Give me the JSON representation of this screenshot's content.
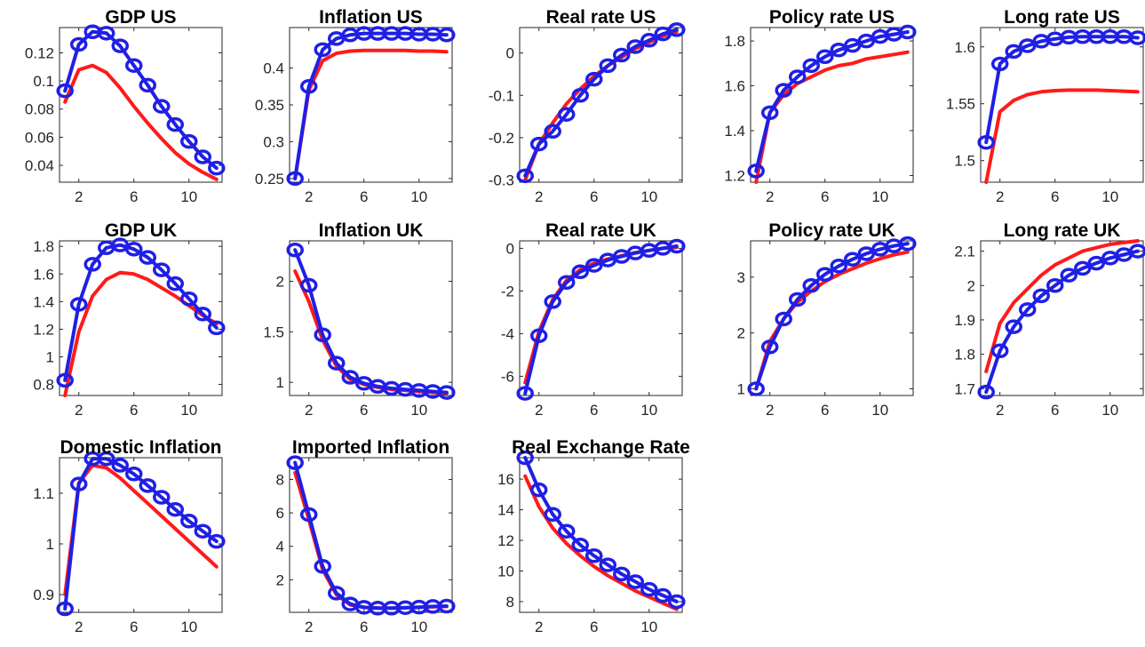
{
  "figure": {
    "colors": {
      "model_line": "#ff1a1a",
      "data_line": "#1f1fe6",
      "axis": "#262626"
    }
  },
  "chart_data": [
    {
      "type": "line",
      "title": "GDP US",
      "xlabel": "",
      "ylabel": "",
      "xlim": [
        0.6,
        12.4
      ],
      "ylim": [
        0.028,
        0.138
      ],
      "xticks": [
        2,
        6,
        10
      ],
      "yticks": [
        0.04,
        0.06,
        0.08,
        0.1,
        0.12
      ],
      "ytick_labels": [
        "0.04",
        "0.06",
        "0.08",
        "0.1",
        "0.12"
      ],
      "x": [
        1,
        2,
        3,
        4,
        5,
        6,
        7,
        8,
        9,
        10,
        11,
        12
      ],
      "series": [
        {
          "values": [
            0.085,
            0.108,
            0.111,
            0.106,
            0.095,
            0.082,
            0.07,
            0.059,
            0.049,
            0.041,
            0.035,
            0.03
          ]
        },
        {
          "marker": "o",
          "values": [
            0.093,
            0.126,
            0.135,
            0.134,
            0.125,
            0.111,
            0.097,
            0.082,
            0.069,
            0.057,
            0.046,
            0.038
          ]
        }
      ]
    },
    {
      "type": "line",
      "title": "Inflation US",
      "xlabel": "",
      "ylabel": "",
      "xlim": [
        0.6,
        12.4
      ],
      "ylim": [
        0.245,
        0.455
      ],
      "xticks": [
        2,
        6,
        10
      ],
      "yticks": [
        0.25,
        0.3,
        0.35,
        0.4
      ],
      "ytick_labels": [
        "0.25",
        "0.3",
        "0.35",
        "0.4"
      ],
      "x": [
        1,
        2,
        3,
        4,
        5,
        6,
        7,
        8,
        9,
        10,
        11,
        12
      ],
      "series": [
        {
          "values": [
            0.25,
            0.37,
            0.41,
            0.42,
            0.423,
            0.424,
            0.424,
            0.424,
            0.424,
            0.423,
            0.423,
            0.422
          ]
        },
        {
          "marker": "o",
          "values": [
            0.25,
            0.375,
            0.425,
            0.44,
            0.445,
            0.447,
            0.447,
            0.447,
            0.447,
            0.446,
            0.446,
            0.445
          ]
        }
      ]
    },
    {
      "type": "line",
      "title": "Real rate US",
      "xlabel": "",
      "ylabel": "",
      "xlim": [
        0.6,
        12.4
      ],
      "ylim": [
        -0.305,
        0.06
      ],
      "xticks": [
        2,
        6,
        10
      ],
      "yticks": [
        -0.3,
        -0.2,
        -0.1,
        0
      ],
      "ytick_labels": [
        "-0.3",
        "-0.2",
        "-0.1",
        "0"
      ],
      "x": [
        1,
        2,
        3,
        4,
        5,
        6,
        7,
        8,
        9,
        10,
        11,
        12
      ],
      "series": [
        {
          "values": [
            -0.3,
            -0.215,
            -0.165,
            -0.12,
            -0.085,
            -0.055,
            -0.03,
            -0.01,
            0.01,
            0.025,
            0.04,
            0.05
          ]
        },
        {
          "marker": "o",
          "values": [
            -0.29,
            -0.215,
            -0.185,
            -0.145,
            -0.1,
            -0.062,
            -0.03,
            -0.005,
            0.015,
            0.03,
            0.045,
            0.055
          ]
        }
      ]
    },
    {
      "type": "line",
      "title": "Policy rate US",
      "xlabel": "",
      "ylabel": "",
      "xlim": [
        0.6,
        12.4
      ],
      "ylim": [
        1.17,
        1.86
      ],
      "xticks": [
        2,
        6,
        10
      ],
      "yticks": [
        1.2,
        1.4,
        1.6,
        1.8
      ],
      "ytick_labels": [
        "1.2",
        "1.4",
        "1.6",
        "1.8"
      ],
      "x": [
        1,
        2,
        3,
        4,
        5,
        6,
        7,
        8,
        9,
        10,
        11,
        12
      ],
      "series": [
        {
          "values": [
            1.17,
            1.48,
            1.56,
            1.61,
            1.64,
            1.67,
            1.69,
            1.7,
            1.72,
            1.73,
            1.74,
            1.75
          ]
        },
        {
          "marker": "o",
          "values": [
            1.22,
            1.48,
            1.58,
            1.64,
            1.69,
            1.73,
            1.76,
            1.78,
            1.8,
            1.82,
            1.83,
            1.84
          ]
        }
      ]
    },
    {
      "type": "line",
      "title": "Long rate US",
      "xlabel": "",
      "ylabel": "",
      "xlim": [
        0.6,
        12.4
      ],
      "ylim": [
        1.481,
        1.617
      ],
      "xticks": [
        2,
        6,
        10
      ],
      "yticks": [
        1.5,
        1.55,
        1.6
      ],
      "ytick_labels": [
        "1.5",
        "1.55",
        "1.6"
      ],
      "x": [
        1,
        2,
        3,
        4,
        5,
        6,
        7,
        8,
        9,
        10,
        11,
        12
      ],
      "series": [
        {
          "values": [
            1.481,
            1.543,
            1.553,
            1.558,
            1.5605,
            1.5615,
            1.562,
            1.562,
            1.562,
            1.5615,
            1.561,
            1.5605
          ]
        },
        {
          "marker": "o",
          "values": [
            1.516,
            1.585,
            1.596,
            1.601,
            1.605,
            1.607,
            1.6085,
            1.609,
            1.609,
            1.609,
            1.609,
            1.608
          ]
        }
      ]
    },
    {
      "type": "line",
      "title": "GDP UK",
      "xlabel": "",
      "ylabel": "",
      "xlim": [
        0.6,
        12.4
      ],
      "ylim": [
        0.72,
        1.84
      ],
      "xticks": [
        2,
        6,
        10
      ],
      "yticks": [
        0.8,
        1,
        1.2,
        1.4,
        1.6,
        1.8
      ],
      "ytick_labels": [
        "0.8",
        "1",
        "1.2",
        "1.4",
        "1.6",
        "1.8"
      ],
      "x": [
        1,
        2,
        3,
        4,
        5,
        6,
        7,
        8,
        9,
        10,
        11,
        12
      ],
      "series": [
        {
          "values": [
            0.72,
            1.18,
            1.44,
            1.56,
            1.61,
            1.6,
            1.56,
            1.5,
            1.44,
            1.37,
            1.3,
            1.24
          ]
        },
        {
          "marker": "o",
          "values": [
            0.83,
            1.38,
            1.67,
            1.79,
            1.81,
            1.78,
            1.72,
            1.63,
            1.53,
            1.42,
            1.31,
            1.21
          ]
        }
      ]
    },
    {
      "type": "line",
      "title": "Inflation UK",
      "xlabel": "",
      "ylabel": "",
      "xlim": [
        0.6,
        12.4
      ],
      "ylim": [
        0.87,
        2.4
      ],
      "xticks": [
        2,
        6,
        10
      ],
      "yticks": [
        1,
        1.5,
        2
      ],
      "ytick_labels": [
        "1",
        "1.5",
        "2"
      ],
      "x": [
        1,
        2,
        3,
        4,
        5,
        6,
        7,
        8,
        9,
        10,
        11,
        12
      ],
      "series": [
        {
          "values": [
            2.1,
            1.8,
            1.42,
            1.16,
            1.03,
            0.98,
            0.95,
            0.93,
            0.92,
            0.91,
            0.9,
            0.89
          ]
        },
        {
          "marker": "o",
          "values": [
            2.31,
            1.96,
            1.47,
            1.19,
            1.05,
            0.99,
            0.96,
            0.94,
            0.93,
            0.92,
            0.91,
            0.9
          ]
        }
      ]
    },
    {
      "type": "line",
      "title": "Real rate UK",
      "xlabel": "",
      "ylabel": "",
      "xlim": [
        0.6,
        12.4
      ],
      "ylim": [
        -6.9,
        0.35
      ],
      "xticks": [
        2,
        6,
        10
      ],
      "yticks": [
        -6,
        -4,
        -2,
        0
      ],
      "ytick_labels": [
        "-6",
        "-4",
        "-2",
        "0"
      ],
      "x": [
        1,
        2,
        3,
        4,
        5,
        6,
        7,
        8,
        9,
        10,
        11,
        12
      ],
      "series": [
        {
          "values": [
            -6.3,
            -3.9,
            -2.4,
            -1.5,
            -1.0,
            -0.7,
            -0.5,
            -0.35,
            -0.2,
            -0.1,
            0.0,
            0.05
          ]
        },
        {
          "marker": "o",
          "values": [
            -6.8,
            -4.1,
            -2.5,
            -1.6,
            -1.1,
            -0.8,
            -0.55,
            -0.38,
            -0.22,
            -0.1,
            0.0,
            0.1
          ]
        }
      ]
    },
    {
      "type": "line",
      "title": "Policy rate UK",
      "xlabel": "",
      "ylabel": "",
      "xlim": [
        0.6,
        12.4
      ],
      "ylim": [
        0.88,
        3.65
      ],
      "xticks": [
        2,
        6,
        10
      ],
      "yticks": [
        1,
        2,
        3
      ],
      "ytick_labels": [
        "1",
        "2",
        "3"
      ],
      "x": [
        1,
        2,
        3,
        4,
        5,
        6,
        7,
        8,
        9,
        10,
        11,
        12
      ],
      "series": [
        {
          "values": [
            1.0,
            1.85,
            2.25,
            2.55,
            2.75,
            2.92,
            3.05,
            3.15,
            3.25,
            3.33,
            3.4,
            3.45
          ]
        },
        {
          "marker": "o",
          "values": [
            1.0,
            1.75,
            2.25,
            2.6,
            2.85,
            3.05,
            3.2,
            3.32,
            3.42,
            3.5,
            3.56,
            3.6
          ]
        }
      ]
    },
    {
      "type": "line",
      "title": "Long rate UK",
      "xlabel": "",
      "ylabel": "",
      "xlim": [
        0.6,
        12.4
      ],
      "ylim": [
        1.68,
        2.13
      ],
      "xticks": [
        2,
        6,
        10
      ],
      "yticks": [
        1.7,
        1.8,
        1.9,
        2,
        2.1
      ],
      "ytick_labels": [
        "1.7",
        "1.8",
        "1.9",
        "2",
        "2.1"
      ],
      "x": [
        1,
        2,
        3,
        4,
        5,
        6,
        7,
        8,
        9,
        10,
        11,
        12
      ],
      "series": [
        {
          "values": [
            1.75,
            1.89,
            1.95,
            1.99,
            2.03,
            2.06,
            2.08,
            2.1,
            2.11,
            2.12,
            2.125,
            2.13
          ]
        },
        {
          "marker": "o",
          "values": [
            1.69,
            1.81,
            1.88,
            1.93,
            1.97,
            2.0,
            2.03,
            2.05,
            2.065,
            2.08,
            2.09,
            2.1
          ]
        }
      ]
    },
    {
      "type": "line",
      "title": "Domestic Inflation",
      "xlabel": "",
      "ylabel": "",
      "xlim": [
        0.6,
        12.4
      ],
      "ylim": [
        0.865,
        1.17
      ],
      "xticks": [
        2,
        6,
        10
      ],
      "yticks": [
        0.9,
        1,
        1.1
      ],
      "ytick_labels": [
        "0.9",
        "1",
        "1.1"
      ],
      "x": [
        1,
        2,
        3,
        4,
        5,
        6,
        7,
        8,
        9,
        10,
        11,
        12
      ],
      "series": [
        {
          "values": [
            0.9,
            1.12,
            1.155,
            1.15,
            1.13,
            1.105,
            1.08,
            1.055,
            1.03,
            1.005,
            0.98,
            0.955
          ]
        },
        {
          "marker": "o",
          "values": [
            0.872,
            1.118,
            1.168,
            1.168,
            1.155,
            1.138,
            1.115,
            1.092,
            1.068,
            1.045,
            1.025,
            1.005
          ]
        }
      ]
    },
    {
      "type": "line",
      "title": "Imported Inflation",
      "xlabel": "",
      "ylabel": "",
      "xlim": [
        0.6,
        12.4
      ],
      "ylim": [
        0.05,
        9.3
      ],
      "xticks": [
        2,
        6,
        10
      ],
      "yticks": [
        2,
        4,
        6,
        8
      ],
      "ytick_labels": [
        "2",
        "4",
        "6",
        "8"
      ],
      "x": [
        1,
        2,
        3,
        4,
        5,
        6,
        7,
        8,
        9,
        10,
        11,
        12
      ],
      "series": [
        {
          "values": [
            8.4,
            5.6,
            2.6,
            1.1,
            0.5,
            0.35,
            0.3,
            0.3,
            0.32,
            0.35,
            0.38,
            0.4
          ]
        },
        {
          "marker": "o",
          "values": [
            9.0,
            5.9,
            2.8,
            1.2,
            0.55,
            0.35,
            0.3,
            0.3,
            0.33,
            0.36,
            0.4,
            0.42
          ]
        }
      ]
    },
    {
      "type": "line",
      "title": "Real Exchange Rate",
      "xlabel": "",
      "ylabel": "",
      "xlim": [
        0.6,
        12.4
      ],
      "ylim": [
        7.3,
        17.4
      ],
      "xticks": [
        2,
        6,
        10
      ],
      "yticks": [
        8,
        10,
        12,
        14,
        16
      ],
      "ytick_labels": [
        "8",
        "10",
        "12",
        "14",
        "16"
      ],
      "x": [
        1,
        2,
        3,
        4,
        5,
        6,
        7,
        8,
        9,
        10,
        11,
        12
      ],
      "series": [
        {
          "values": [
            16.2,
            14.2,
            12.8,
            11.8,
            11.0,
            10.3,
            9.7,
            9.2,
            8.7,
            8.3,
            7.9,
            7.5
          ]
        },
        {
          "marker": "o",
          "values": [
            17.4,
            15.3,
            13.7,
            12.6,
            11.7,
            11.0,
            10.4,
            9.8,
            9.3,
            8.8,
            8.4,
            8.0
          ]
        }
      ]
    }
  ]
}
